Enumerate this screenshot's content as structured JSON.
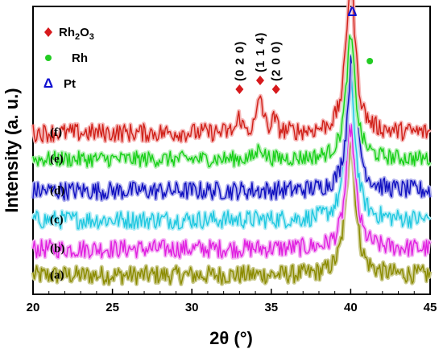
{
  "chart_data": {
    "type": "line",
    "title": "",
    "xlabel": "2θ (°)",
    "ylabel": "Intensity (a. u.)",
    "xlim": [
      20,
      45
    ],
    "x_ticks": [
      "20",
      "25",
      "30",
      "35",
      "40",
      "45"
    ],
    "grid": false,
    "legend": {
      "placement": "top-left",
      "entries": [
        {
          "marker": "diamond",
          "label_main": "Rh",
          "label_sub": "2",
          "label_tail": "O",
          "label_sub2": "3",
          "color": "#d7191c"
        },
        {
          "marker": "circle",
          "label_main": "Rh",
          "color": "#22cc22"
        },
        {
          "marker": "triangle",
          "glyph": "Δ",
          "label_main": "Pt",
          "color": "#1010d0"
        }
      ]
    },
    "series": [
      {
        "name": "(a)",
        "color": "#8b8b00",
        "fill": "#c9c98a",
        "baseline": 0.06,
        "noise": 0.035,
        "peaks": [
          {
            "x": 40.0,
            "h": 0.52,
            "w": 0.35
          }
        ]
      },
      {
        "name": "(b)",
        "color": "#e020e0",
        "fill": "#f4b4f4",
        "baseline": 0.16,
        "noise": 0.035,
        "peaks": [
          {
            "x": 40.0,
            "h": 0.46,
            "w": 0.35
          }
        ]
      },
      {
        "name": "(c)",
        "color": "#20c8e0",
        "fill": "#b8eef6",
        "baseline": 0.27,
        "noise": 0.035,
        "peaks": [
          {
            "x": 40.0,
            "h": 0.52,
            "w": 0.35
          }
        ]
      },
      {
        "name": "(d)",
        "color": "#1010c0",
        "fill": "#b0b0ee",
        "baseline": 0.38,
        "noise": 0.035,
        "peaks": [
          {
            "x": 40.1,
            "h": 0.52,
            "w": 0.35
          }
        ]
      },
      {
        "name": "(e)",
        "color": "#18d018",
        "fill": "#b8f0b8",
        "baseline": 0.5,
        "noise": 0.03,
        "peaks": [
          {
            "x": 34.3,
            "h": 0.05,
            "w": 0.2
          },
          {
            "x": 40.0,
            "h": 0.46,
            "w": 0.35
          }
        ]
      },
      {
        "name": "(f)",
        "color": "#d02018",
        "fill": "#f6b8b8",
        "baseline": 0.6,
        "noise": 0.035,
        "peaks": [
          {
            "x": 33.0,
            "h": 0.06,
            "w": 0.15
          },
          {
            "x": 34.3,
            "h": 0.14,
            "w": 0.2
          },
          {
            "x": 35.2,
            "h": 0.05,
            "w": 0.15
          },
          {
            "x": 40.0,
            "h": 0.58,
            "w": 0.35
          }
        ]
      }
    ],
    "annotations": [
      {
        "text": "(0 2 0)",
        "x": 33.0,
        "marker": "diamond",
        "color": "#d7191c"
      },
      {
        "text": "(1 1 4)",
        "x": 34.3,
        "marker": "diamond",
        "color": "#d7191c"
      },
      {
        "text": "(2 0 0)",
        "x": 35.3,
        "marker": "diamond",
        "color": "#d7191c"
      },
      {
        "text": "",
        "x": 40.9,
        "marker": "circle",
        "color": "#22cc22"
      },
      {
        "text": "Δ",
        "x": 40.1,
        "marker": "triangle",
        "color": "#1010d0"
      }
    ]
  }
}
